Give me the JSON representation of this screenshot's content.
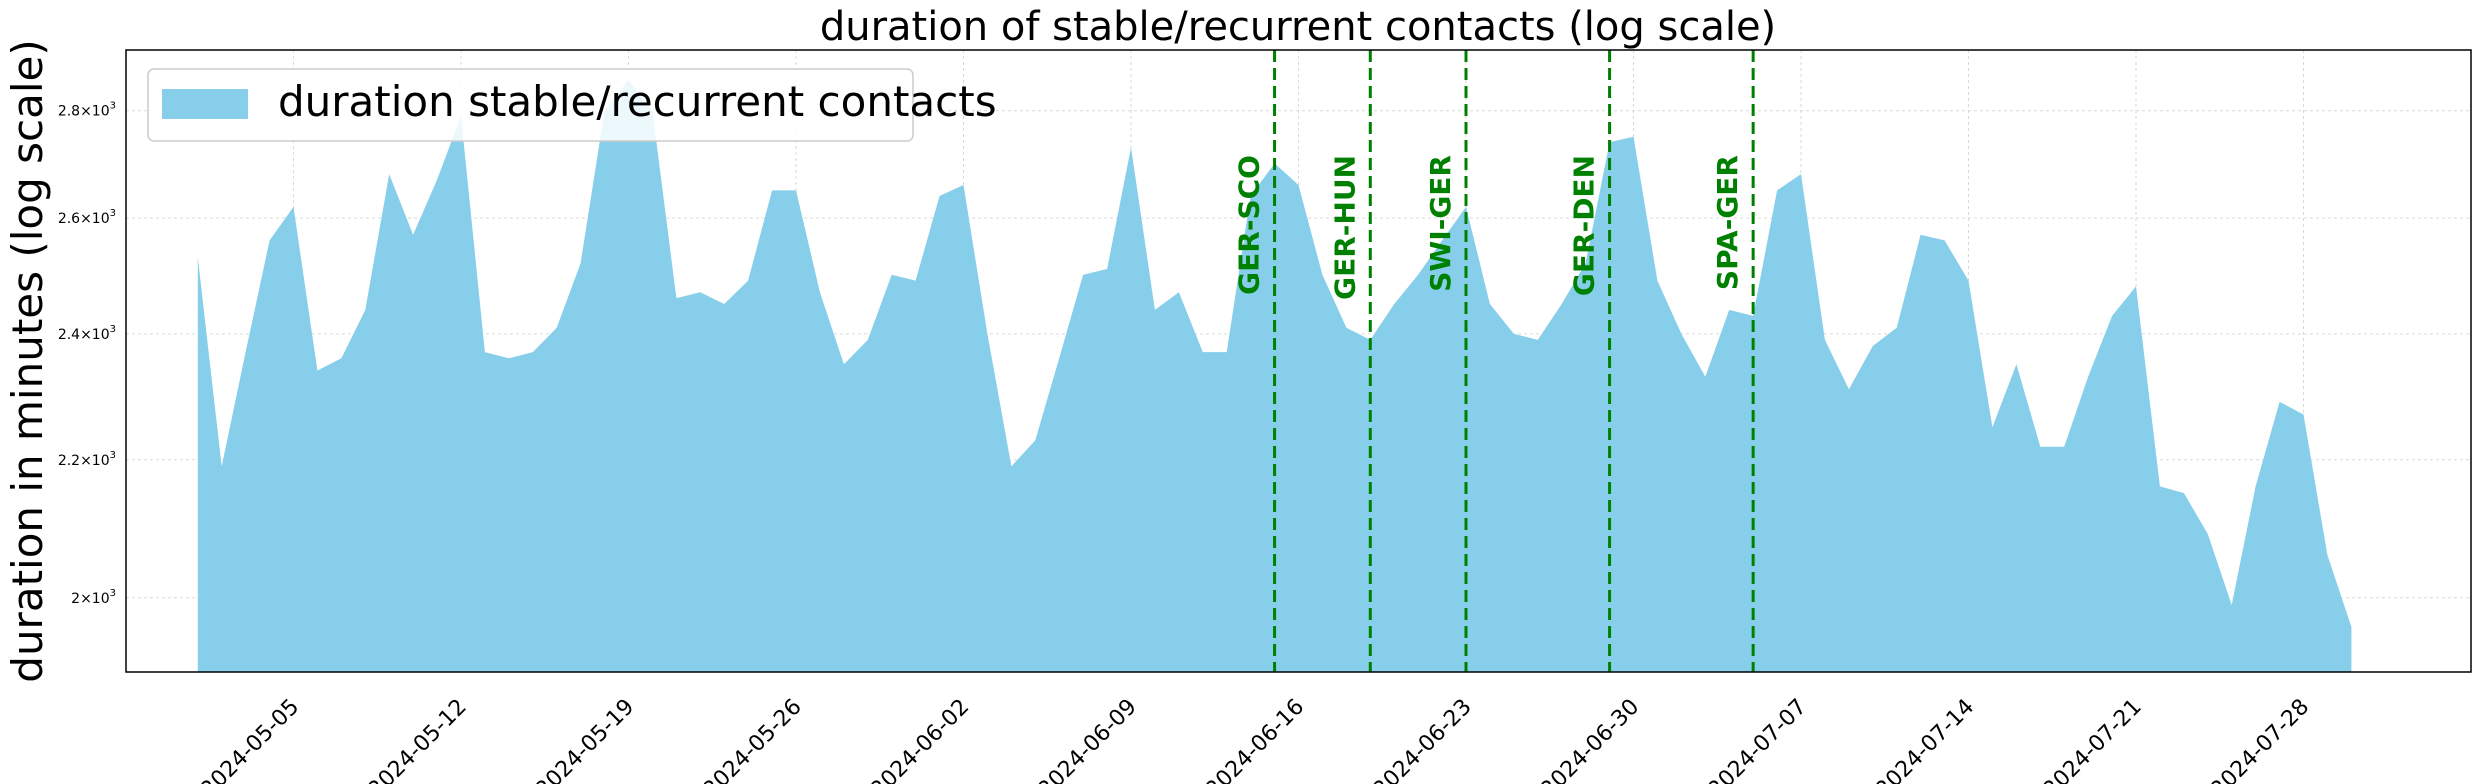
{
  "chart_data": {
    "type": "area",
    "title": "duration of stable/recurrent contacts (log scale)",
    "xlabel": "",
    "ylabel": "duration in minutes (log scale)",
    "yscale": "log",
    "ylim": [
      1900,
      2920
    ],
    "xlim": [
      "2024-04-28",
      "2024-08-04"
    ],
    "grid": true,
    "legend_position": "top-left",
    "x_ticks": [
      "2024-05-05",
      "2024-05-12",
      "2024-05-19",
      "2024-05-26",
      "2024-06-02",
      "2024-06-09",
      "2024-06-16",
      "2024-06-23",
      "2024-06-30",
      "2024-07-07",
      "2024-07-14",
      "2024-07-21",
      "2024-07-28"
    ],
    "y_ticks": [
      {
        "value": 2000,
        "label": "2×10³"
      },
      {
        "value": 2200,
        "label": "2.2×10³"
      },
      {
        "value": 2400,
        "label": "2.4×10³"
      },
      {
        "value": 2600,
        "label": "2.6×10³"
      },
      {
        "value": 2800,
        "label": "2.8×10³"
      }
    ],
    "series": [
      {
        "name": "duration stable/recurrent contacts",
        "color": "#87ceeb",
        "x": [
          "2024-05-01",
          "2024-05-02",
          "2024-05-03",
          "2024-05-04",
          "2024-05-05",
          "2024-05-06",
          "2024-05-07",
          "2024-05-08",
          "2024-05-09",
          "2024-05-10",
          "2024-05-11",
          "2024-05-12",
          "2024-05-13",
          "2024-05-14",
          "2024-05-15",
          "2024-05-16",
          "2024-05-17",
          "2024-05-18",
          "2024-05-19",
          "2024-05-20",
          "2024-05-21",
          "2024-05-22",
          "2024-05-23",
          "2024-05-24",
          "2024-05-25",
          "2024-05-26",
          "2024-05-27",
          "2024-05-28",
          "2024-05-29",
          "2024-05-30",
          "2024-05-31",
          "2024-06-01",
          "2024-06-02",
          "2024-06-03",
          "2024-06-04",
          "2024-06-05",
          "2024-06-06",
          "2024-06-07",
          "2024-06-08",
          "2024-06-09",
          "2024-06-10",
          "2024-06-11",
          "2024-06-12",
          "2024-06-13",
          "2024-06-14",
          "2024-06-15",
          "2024-06-16",
          "2024-06-17",
          "2024-06-18",
          "2024-06-19",
          "2024-06-20",
          "2024-06-21",
          "2024-06-22",
          "2024-06-23",
          "2024-06-24",
          "2024-06-25",
          "2024-06-26",
          "2024-06-27",
          "2024-06-28",
          "2024-06-29",
          "2024-06-30",
          "2024-07-01",
          "2024-07-02",
          "2024-07-03",
          "2024-07-04",
          "2024-07-05",
          "2024-07-06",
          "2024-07-07",
          "2024-07-08",
          "2024-07-09",
          "2024-07-10",
          "2024-07-11",
          "2024-07-12",
          "2024-07-13",
          "2024-07-14",
          "2024-07-15",
          "2024-07-16",
          "2024-07-17",
          "2024-07-18",
          "2024-07-19",
          "2024-07-20",
          "2024-07-21",
          "2024-07-22",
          "2024-07-23",
          "2024-07-24",
          "2024-07-25",
          "2024-07-26",
          "2024-07-27",
          "2024-07-28",
          "2024-07-29",
          "2024-07-30"
        ],
        "values": [
          2530,
          2190,
          2370,
          2560,
          2620,
          2340,
          2360,
          2440,
          2680,
          2570,
          2670,
          2790,
          2370,
          2360,
          2370,
          2410,
          2520,
          2800,
          2860,
          2800,
          2460,
          2470,
          2450,
          2490,
          2650,
          2650,
          2470,
          2350,
          2390,
          2500,
          2490,
          2640,
          2660,
          2400,
          2190,
          2230,
          2360,
          2500,
          2510,
          2730,
          2440,
          2470,
          2370,
          2370,
          2640,
          2700,
          2660,
          2500,
          2410,
          2390,
          2450,
          2500,
          2560,
          2620,
          2450,
          2400,
          2390,
          2450,
          2520,
          2740,
          2750,
          2490,
          2400,
          2330,
          2440,
          2430,
          2650,
          2680,
          2390,
          2310,
          2380,
          2410,
          2570,
          2560,
          2490,
          2250,
          2350,
          2220,
          2220,
          2330,
          2430,
          2480,
          2160,
          2150,
          2090,
          1990,
          2160,
          2290,
          2270,
          2060,
          1960
        ]
      }
    ],
    "events": [
      {
        "date": "2024-06-15",
        "label": "GER-SCO"
      },
      {
        "date": "2024-06-19",
        "label": "GER-HUN"
      },
      {
        "date": "2024-06-23",
        "label": "SWI-GER"
      },
      {
        "date": "2024-06-29",
        "label": "GER-DEN"
      },
      {
        "date": "2024-07-05",
        "label": "SPA-GER"
      }
    ],
    "event_color": "#008000"
  }
}
